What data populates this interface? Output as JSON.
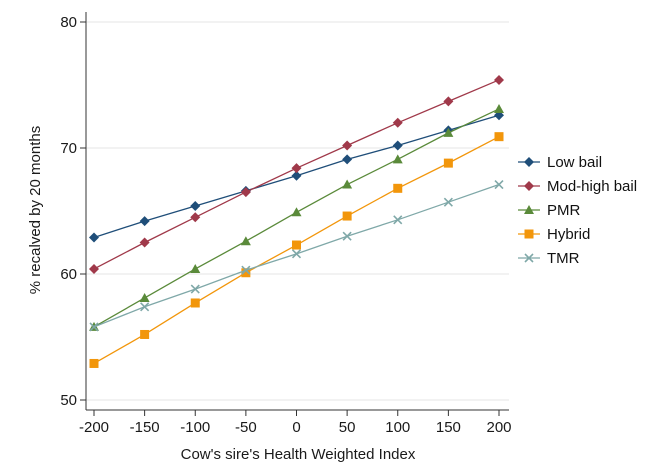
{
  "chart_data": {
    "type": "line",
    "title": "",
    "xlabel": "Cow's sire's Health Weighted Index",
    "ylabel": "% recalved by 20 months",
    "x": [
      -200,
      -150,
      -100,
      -50,
      0,
      50,
      100,
      150,
      200
    ],
    "xticks": [
      "-200",
      "-150",
      "-100",
      "-50",
      "0",
      "50",
      "100",
      "150",
      "200"
    ],
    "yticks": [
      "50",
      "60",
      "70",
      "80"
    ],
    "xlim": [
      -200,
      200
    ],
    "ylim": [
      50,
      80
    ],
    "grid": "horizontal",
    "legend_position": "right",
    "series": [
      {
        "name": "Low bail",
        "color": "#1f4e79",
        "marker": "diamond",
        "values": [
          62.9,
          64.2,
          65.4,
          66.6,
          67.8,
          69.1,
          70.2,
          71.4,
          72.6
        ]
      },
      {
        "name": "Mod-high bail",
        "color": "#a0394a",
        "marker": "diamond",
        "values": [
          60.4,
          62.5,
          64.5,
          66.5,
          68.4,
          70.2,
          72.0,
          73.7,
          75.4
        ]
      },
      {
        "name": "PMR",
        "color": "#5a8a3a",
        "marker": "triangle",
        "values": [
          55.8,
          58.1,
          60.4,
          62.6,
          64.9,
          67.1,
          69.1,
          71.2,
          73.1
        ]
      },
      {
        "name": "Hybrid",
        "color": "#f2960b",
        "marker": "square",
        "values": [
          52.9,
          55.2,
          57.7,
          60.1,
          62.3,
          64.6,
          66.8,
          68.8,
          70.9
        ]
      },
      {
        "name": "TMR",
        "color": "#7fa8a8",
        "marker": "x",
        "values": [
          55.8,
          57.4,
          58.8,
          60.3,
          61.6,
          63.0,
          64.3,
          65.7,
          67.1
        ]
      }
    ]
  }
}
